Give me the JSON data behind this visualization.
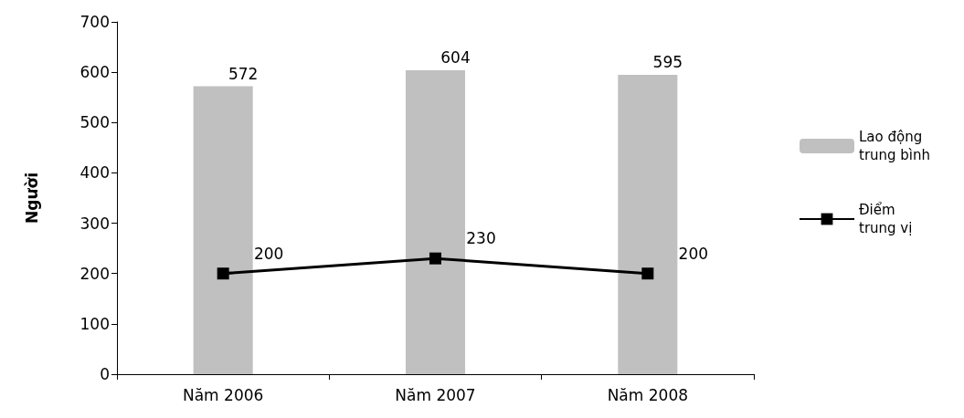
{
  "chart_data": {
    "type": "bar",
    "ylabel": "Người",
    "categories": [
      "Năm 2006",
      "Năm 2007",
      "Năm 2008"
    ],
    "series": [
      {
        "name": "Lao động trung bình",
        "color": "#c0c0c0",
        "values": [
          572,
          604,
          595
        ]
      },
      {
        "name": "Điểm trung vị",
        "type": "line",
        "color": "#000000",
        "values": [
          200,
          230,
          200
        ],
        "marker": "square",
        "line_style": "solid"
      }
    ],
    "ylim": [
      0,
      700
    ],
    "yticks": [
      0,
      100,
      200,
      300,
      400,
      500,
      600,
      700
    ],
    "grid": false,
    "legend": "right",
    "data_labels": true
  }
}
